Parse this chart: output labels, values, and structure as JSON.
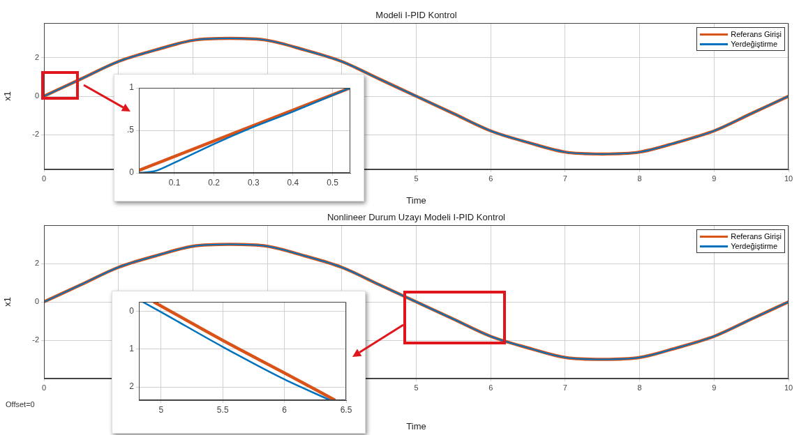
{
  "chart_data": [
    {
      "type": "line",
      "title": "Modeli I-PID Kontrol",
      "xlabel": "Time",
      "ylabel": "x1",
      "xlim": [
        0,
        10
      ],
      "xticks": [
        0,
        {
          "value": 1,
          "label": null
        },
        {
          "value": 2,
          "label": null
        },
        {
          "value": 3,
          "label": null
        },
        {
          "value": 4,
          "label": null
        },
        5,
        6,
        7,
        8,
        9,
        10
      ],
      "ylim": [
        -3.8,
        3.8
      ],
      "yticks": [
        -2,
        0,
        2
      ],
      "grid": true,
      "legend": "top right",
      "x": [
        0,
        0.5,
        1,
        1.5,
        2,
        2.5,
        3,
        3.5,
        4,
        4.5,
        5,
        5.5,
        6,
        6.5,
        7,
        7.5,
        8,
        8.5,
        9,
        9.5,
        10
      ],
      "series": [
        {
          "name": "Referans Girişi",
          "color": "#d95319",
          "values": [
            0,
            0.9,
            1.8,
            2.4,
            2.9,
            3,
            2.9,
            2.4,
            1.8,
            0.9,
            0,
            -0.9,
            -1.8,
            -2.4,
            -2.9,
            -3,
            -2.9,
            -2.4,
            -1.8,
            -0.9,
            0
          ]
        },
        {
          "name": "Yerdeğiştirme",
          "color": "#0072bd",
          "values": [
            0,
            0.9,
            1.8,
            2.4,
            2.9,
            3,
            2.9,
            2.4,
            1.8,
            0.9,
            0,
            -0.9,
            -1.8,
            -2.4,
            -2.9,
            -3,
            -2.9,
            -2.4,
            -1.8,
            -0.9,
            0
          ]
        }
      ]
    },
    {
      "type": "line",
      "xlim": [
        0.01,
        0.545
      ],
      "xticks": [
        0.1,
        0.2,
        0.3,
        0.4,
        0.5
      ],
      "ylim": [
        0,
        1
      ],
      "yticks": [
        {
          "value": 0,
          "label": "0"
        },
        {
          "value": 0.5,
          "label": ".5"
        },
        {
          "value": 1,
          "label": "1"
        }
      ],
      "grid": true,
      "series": [
        {
          "color": "#d95319",
          "x": [
            0.01,
            0.545
          ],
          "values": [
            0.03,
            1
          ]
        },
        {
          "color": "#0072bd",
          "x": [
            0.01,
            0.05,
            0.1,
            0.2,
            0.3,
            0.4,
            0.545
          ],
          "values": [
            0,
            0.02,
            0.12,
            0.34,
            0.54,
            0.72,
            1
          ]
        }
      ]
    },
    {
      "type": "line",
      "title": "Nonlineer Durum Uzayı Modeli I-PID Kontrol",
      "xlabel": "Time",
      "ylabel": "x1",
      "xlim": [
        0,
        10
      ],
      "xticks": [
        0,
        {
          "value": 1,
          "label": null
        },
        {
          "value": 2,
          "label": null
        },
        {
          "value": 3,
          "label": null
        },
        {
          "value": 4,
          "label": null
        },
        5,
        6,
        7,
        8,
        9,
        10
      ],
      "ylim": [
        -4,
        4
      ],
      "yticks": [
        -2,
        0,
        2
      ],
      "grid": true,
      "legend": "top right",
      "annotations": [
        "Offset=0"
      ],
      "x": [
        0,
        0.5,
        1,
        1.5,
        2,
        2.5,
        3,
        3.5,
        4,
        4.5,
        5,
        5.5,
        6,
        6.5,
        7,
        7.5,
        8,
        8.5,
        9,
        9.5,
        10
      ],
      "series": [
        {
          "name": "Referans Girişi",
          "color": "#d95319",
          "values": [
            0,
            0.9,
            1.8,
            2.4,
            2.9,
            3,
            2.9,
            2.4,
            1.8,
            0.9,
            0,
            -0.9,
            -1.8,
            -2.4,
            -2.9,
            -3,
            -2.9,
            -2.4,
            -1.8,
            -0.9,
            0
          ]
        },
        {
          "name": "Yerdeğiştirme",
          "color": "#0072bd",
          "values": [
            0,
            0.9,
            1.8,
            2.4,
            2.9,
            3,
            2.9,
            2.4,
            1.8,
            0.9,
            0,
            -0.9,
            -1.8,
            -2.4,
            -2.9,
            -3,
            -2.9,
            -2.4,
            -1.8,
            -0.9,
            0
          ]
        }
      ]
    },
    {
      "type": "line",
      "xlim": [
        4.82,
        6.5
      ],
      "xticks": [
        5,
        5.5,
        6,
        6.5
      ],
      "ylim": [
        -2.35,
        0.25
      ],
      "yticks": [
        {
          "value": -2,
          "label": "2"
        },
        {
          "value": -1,
          "label": "1"
        },
        {
          "value": 0,
          "label": "0"
        }
      ],
      "grid": true,
      "series": [
        {
          "color": "#d95319",
          "x": [
            4.94,
            5.5,
            6,
            6.41
          ],
          "values": [
            0.25,
            -0.77,
            -1.63,
            -2.35
          ]
        },
        {
          "color": "#0072bd",
          "x": [
            4.85,
            5,
            5.5,
            6,
            6.37
          ],
          "values": [
            0.25,
            -0.02,
            -0.94,
            -1.8,
            -2.35
          ]
        }
      ]
    }
  ]
}
